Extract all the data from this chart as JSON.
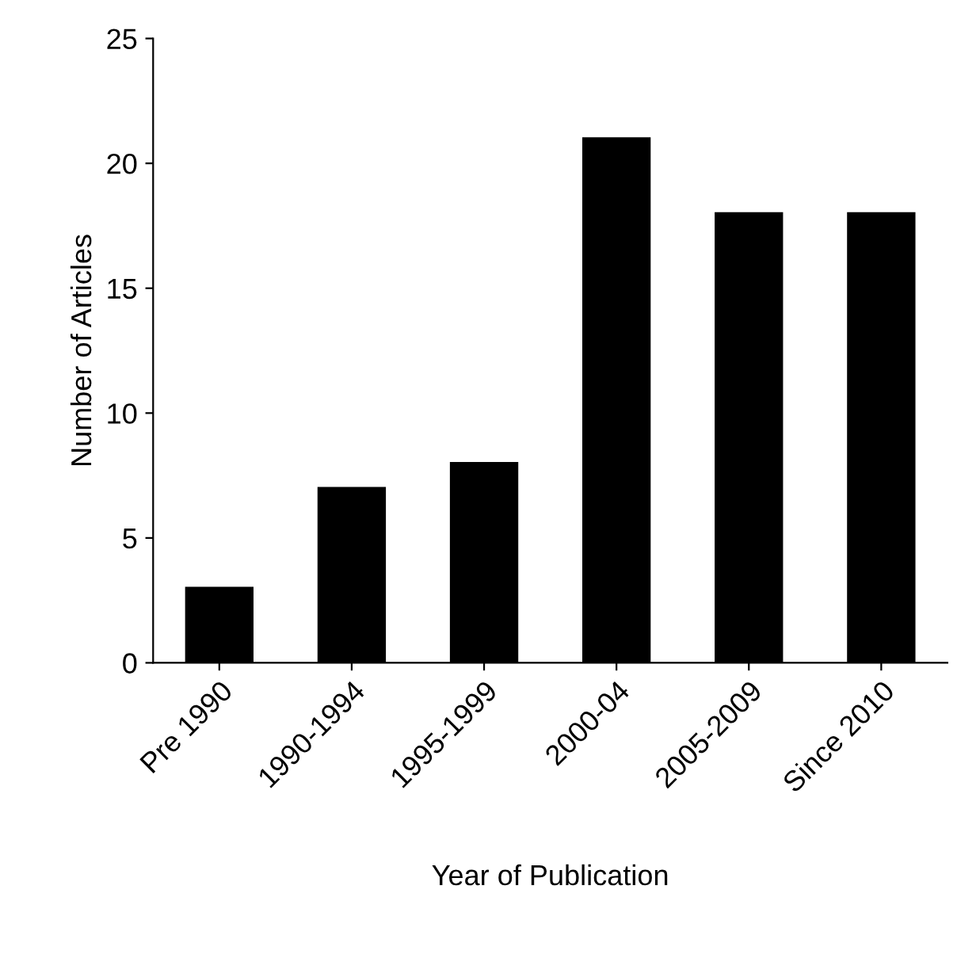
{
  "chart_data": {
    "type": "bar",
    "xlabel": "Year of Publication",
    "ylabel": "Number of Articles",
    "categories": [
      "Pre 1990",
      "1990-1994",
      "1995-1999",
      "2000-04",
      "2005-2009",
      "Since 2010"
    ],
    "values": [
      3,
      7,
      8,
      21,
      18,
      18
    ],
    "color": "#000000",
    "ylim": [
      0,
      25
    ],
    "yticks": [
      0,
      5,
      10,
      15,
      20,
      25
    ],
    "grid": false
  }
}
